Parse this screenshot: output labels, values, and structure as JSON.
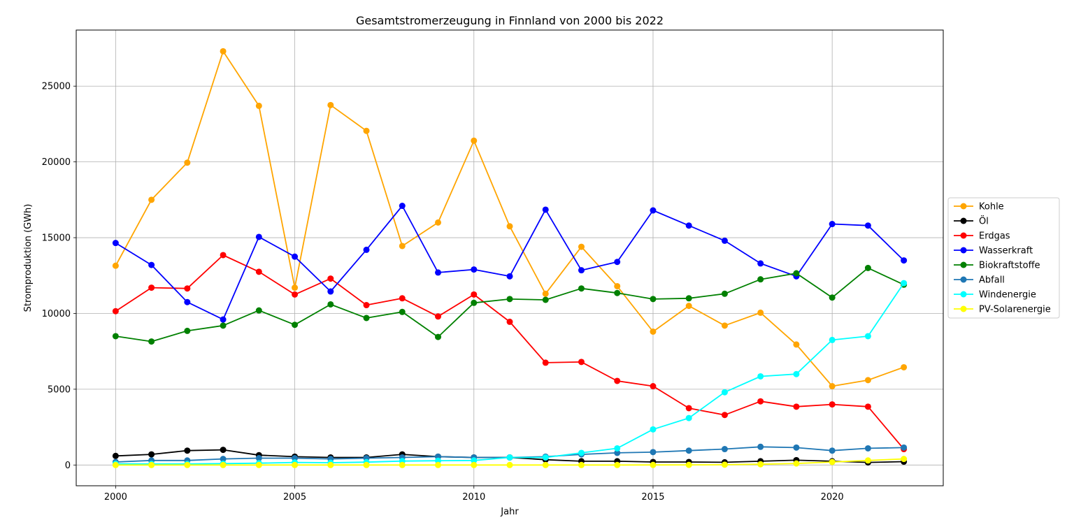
{
  "chart_data": {
    "type": "line",
    "title": "Gesamtstromerzeugung in Finnland von 2000 bis 2022",
    "xlabel": "Jahr",
    "ylabel": "Stromproduktion (GWh)",
    "xlim": [
      1998.9,
      2023.1
    ],
    "ylim": [
      -1370,
      28700
    ],
    "x_ticks": [
      2000,
      2005,
      2010,
      2015,
      2020
    ],
    "y_ticks": [
      0,
      5000,
      10000,
      15000,
      20000,
      25000
    ],
    "grid": true,
    "legend_placement": "right outside, vertically centered",
    "x": [
      2000,
      2001,
      2002,
      2003,
      2004,
      2005,
      2006,
      2007,
      2008,
      2009,
      2010,
      2011,
      2012,
      2013,
      2014,
      2015,
      2016,
      2017,
      2018,
      2019,
      2020,
      2021,
      2022
    ],
    "series": [
      {
        "name": "Kohle",
        "color": "#ffa500",
        "values": [
          13150,
          17500,
          19950,
          27300,
          23700,
          11700,
          23750,
          22050,
          14450,
          16000,
          21400,
          15750,
          11300,
          14400,
          11800,
          8800,
          10500,
          9200,
          10050,
          7950,
          5200,
          5600,
          6450
        ]
      },
      {
        "name": "Öl",
        "color": "#000000",
        "values": [
          600,
          700,
          950,
          1000,
          650,
          550,
          500,
          500,
          700,
          550,
          500,
          500,
          350,
          250,
          250,
          200,
          200,
          180,
          250,
          320,
          250,
          170,
          220
        ]
      },
      {
        "name": "Erdgas",
        "color": "#ff0000",
        "values": [
          10150,
          11700,
          11650,
          13850,
          12750,
          11250,
          12300,
          10550,
          11000,
          9800,
          11250,
          9450,
          6750,
          6800,
          5550,
          5200,
          3750,
          3300,
          4200,
          3850,
          4000,
          3850,
          1050
        ]
      },
      {
        "name": "Wasserkraft",
        "color": "#0000ff",
        "values": [
          14650,
          13200,
          10750,
          9600,
          15050,
          13750,
          11450,
          14200,
          17100,
          12700,
          12900,
          12450,
          16850,
          12850,
          13400,
          16800,
          15800,
          14800,
          13300,
          12450,
          15900,
          15800,
          13500
        ]
      },
      {
        "name": "Biokraftstoffe",
        "color": "#008000",
        "values": [
          8500,
          8150,
          8850,
          9200,
          10200,
          9250,
          10600,
          9700,
          10100,
          8450,
          10700,
          10950,
          10900,
          11650,
          11350,
          10950,
          11000,
          11300,
          12250,
          12650,
          11050,
          13000,
          11900
        ]
      },
      {
        "name": "Abfall",
        "color": "#1f77b4",
        "values": [
          200,
          300,
          300,
          400,
          450,
          450,
          400,
          450,
          500,
          550,
          500,
          500,
          550,
          700,
          800,
          850,
          950,
          1050,
          1200,
          1150,
          950,
          1100,
          1150
        ]
      },
      {
        "name": "Windenergie",
        "color": "#00ffff",
        "values": [
          80,
          70,
          70,
          90,
          120,
          170,
          150,
          190,
          260,
          280,
          300,
          500,
          500,
          800,
          1100,
          2350,
          3100,
          4800,
          5850,
          6000,
          8250,
          8500,
          12000
        ]
      },
      {
        "name": "PV-Solarenergie",
        "color": "#ffff00",
        "values": [
          0,
          0,
          0,
          0,
          0,
          0,
          0,
          0,
          0,
          0,
          0,
          0,
          0,
          0,
          0,
          5,
          10,
          20,
          50,
          100,
          200,
          300,
          400
        ]
      }
    ]
  }
}
